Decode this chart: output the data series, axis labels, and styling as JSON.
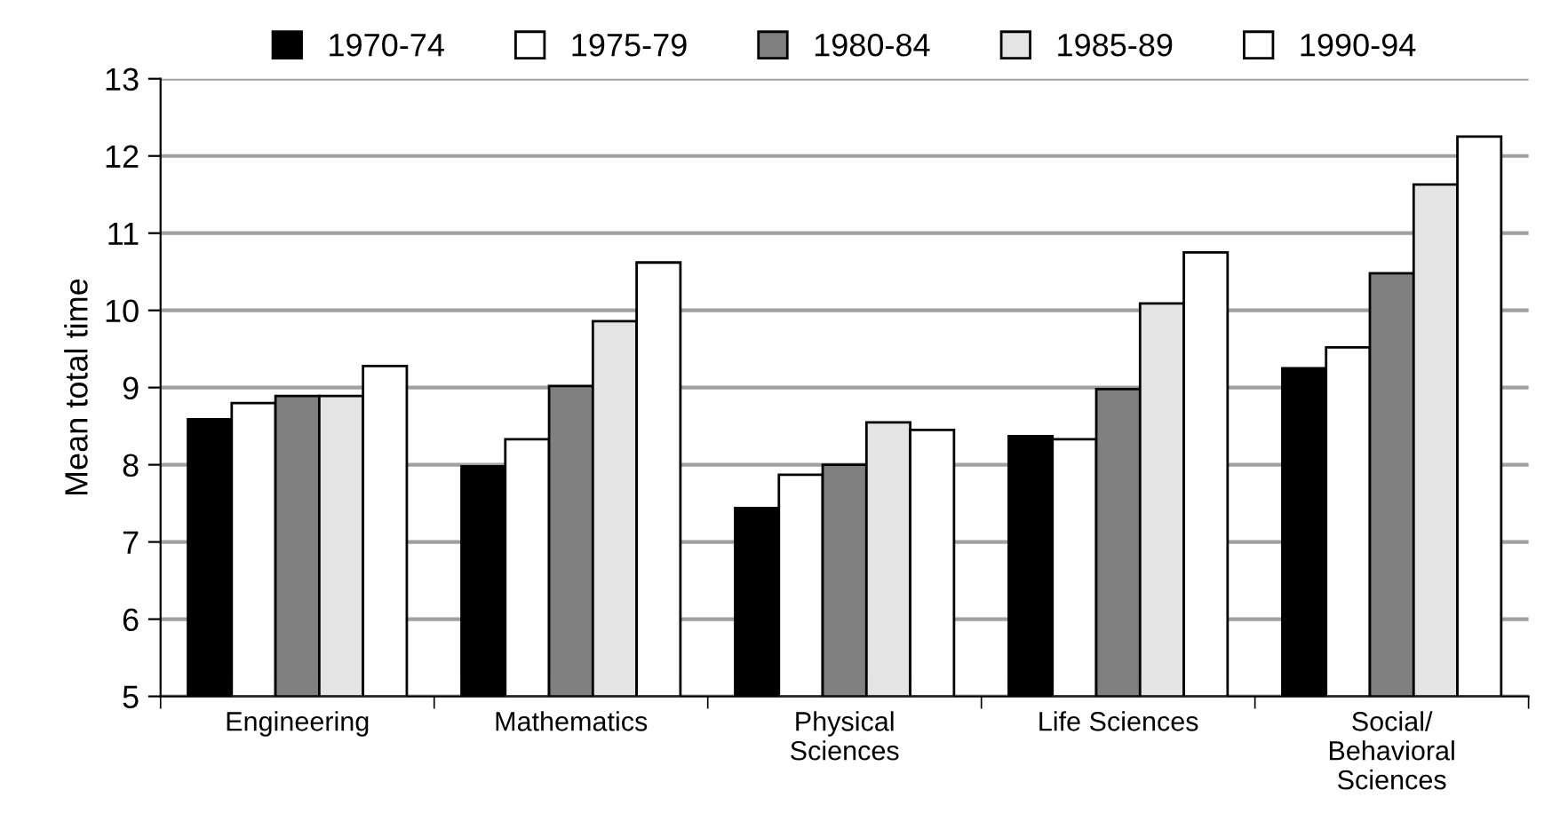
{
  "chart_data": {
    "type": "bar",
    "ylabel": "Mean total time",
    "categories": [
      "Engineering",
      "Mathematics",
      "Physical\nSciences",
      "Life Sciences",
      "Social/\nBehavioral\nSciences"
    ],
    "series": [
      {
        "name": "1970-74",
        "color": "#000000",
        "values": [
          8.59,
          7.98,
          7.44,
          8.37,
          9.25
        ]
      },
      {
        "name": "1975-79",
        "color": "#ffffff",
        "values": [
          8.8,
          8.33,
          7.87,
          8.33,
          9.52
        ]
      },
      {
        "name": "1980-84",
        "color": "#808080",
        "values": [
          8.89,
          9.02,
          8.0,
          8.98,
          10.48
        ]
      },
      {
        "name": "1985-89",
        "color": "#e4e4e4",
        "values": [
          8.89,
          9.86,
          8.55,
          10.09,
          11.63
        ]
      },
      {
        "name": "1990-94",
        "color": "#ffffff",
        "values": [
          9.28,
          10.62,
          8.45,
          10.75,
          12.25
        ]
      }
    ],
    "ylim": [
      5,
      13
    ],
    "yticks": [
      5,
      6,
      7,
      8,
      9,
      10,
      11,
      12,
      13
    ],
    "grid": "y",
    "legend": "top"
  }
}
